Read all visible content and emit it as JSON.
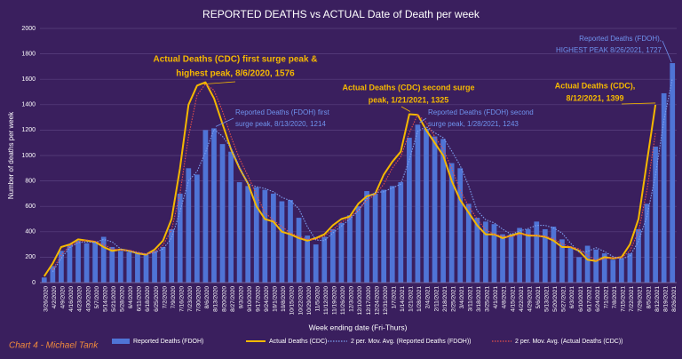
{
  "chart_data": {
    "type": "bar",
    "title": "REPORTED DEATHS vs ACTUAL Date of Death per week",
    "y_label": "Number of deaths per week",
    "x_label": "Week ending date (Fri-Thurs)",
    "credit": "Chart 4 - Michael Tank",
    "ylim": [
      0,
      2000
    ],
    "yticks": [
      0,
      200,
      400,
      600,
      800,
      1000,
      1200,
      1400,
      1600,
      1800,
      2000
    ],
    "grid": true,
    "categories": [
      "3/26/2020",
      "4/2/2020",
      "4/9/2020",
      "4/16/2020",
      "4/23/2020",
      "4/30/2020",
      "5/7/2020",
      "5/14/2020",
      "5/21/2020",
      "5/28/2020",
      "6/4/2020",
      "6/11/2020",
      "6/18/2020",
      "6/25/2020",
      "7/2/2020",
      "7/9/2020",
      "7/16/2020",
      "7/23/2020",
      "7/30/2020",
      "8/6/2020",
      "8/13/2020",
      "8/20/2020",
      "8/27/2020",
      "9/3/2020",
      "9/10/2020",
      "9/17/2020",
      "9/24/2020",
      "10/1/2020",
      "10/8/2020",
      "10/15/2020",
      "10/22/2020",
      "10/29/2020",
      "11/5/2020",
      "11/12/2020",
      "11/19/2020",
      "11/26/2020",
      "12/3/2020",
      "12/10/2020",
      "12/17/2020",
      "12/24/2020",
      "12/31/2020",
      "1/7/2021",
      "1/14/2021",
      "1/21/2021",
      "1/28/2021",
      "2/4/2021",
      "2/11/2021",
      "2/18/2021",
      "2/25/2021",
      "3/4/2021",
      "3/11/2021",
      "3/18/2021",
      "3/25/2021",
      "4/1/2021",
      "4/8/2021",
      "4/15/2021",
      "4/22/2021",
      "4/29/2021",
      "5/6/2021",
      "5/13/2021",
      "5/20/2021",
      "5/27/2021",
      "6/3/2021",
      "6/10/2021",
      "6/17/2021",
      "6/24/2021",
      "7/1/2021",
      "7/8/2021",
      "7/15/2021",
      "7/22/2021",
      "7/29/2021",
      "8/5/2021",
      "8/12/2021",
      "8/19/2021",
      "8/26/2021"
    ],
    "series": [
      {
        "name": "Reported Deaths (FDOH)",
        "kind": "bar",
        "color": "#4f74d6",
        "values": [
          40,
          130,
          250,
          300,
          330,
          310,
          320,
          360,
          280,
          250,
          240,
          230,
          220,
          250,
          280,
          420,
          700,
          900,
          850,
          1200,
          1214,
          1090,
          1030,
          790,
          760,
          750,
          730,
          700,
          640,
          650,
          510,
          370,
          300,
          360,
          420,
          470,
          530,
          600,
          720,
          700,
          730,
          760,
          790,
          1140,
          1243,
          1210,
          1150,
          1130,
          940,
          900,
          620,
          510,
          480,
          460,
          380,
          380,
          430,
          420,
          480,
          420,
          440,
          340,
          280,
          200,
          290,
          260,
          230,
          180,
          190,
          230,
          420,
          620,
          1070,
          1490,
          1727
        ]
      },
      {
        "name": "Actual Deaths (CDC)",
        "kind": "line",
        "color": "#f5b800",
        "values": [
          50,
          150,
          280,
          300,
          340,
          330,
          320,
          280,
          250,
          260,
          250,
          230,
          220,
          260,
          330,
          500,
          900,
          1400,
          1550,
          1576,
          1450,
          1250,
          1050,
          900,
          780,
          600,
          500,
          480,
          400,
          380,
          350,
          330,
          350,
          380,
          450,
          500,
          520,
          620,
          680,
          700,
          850,
          950,
          1030,
          1325,
          1320,
          1200,
          1100,
          1000,
          800,
          650,
          550,
          450,
          380,
          380,
          350,
          370,
          390,
          370,
          370,
          360,
          330,
          280,
          280,
          250,
          180,
          170,
          200,
          190,
          200,
          300,
          500,
          950,
          1399,
          null,
          null
        ]
      },
      {
        "name": "2 per. Mov. Avg. (Reported Deaths (FDOH))",
        "kind": "dotted",
        "color": "#7ea0f0",
        "values": [
          null,
          85,
          190,
          275,
          315,
          320,
          315,
          340,
          320,
          265,
          245,
          235,
          225,
          235,
          265,
          350,
          560,
          800,
          875,
          1025,
          1207,
          1152,
          1060,
          910,
          775,
          755,
          740,
          715,
          670,
          645,
          580,
          440,
          335,
          330,
          390,
          445,
          500,
          565,
          660,
          710,
          715,
          745,
          775,
          965,
          1191.5,
          1226.5,
          1180,
          1140,
          1035,
          920,
          760,
          565,
          495,
          470,
          420,
          380,
          405,
          425,
          450,
          450,
          430,
          390,
          310,
          240,
          245,
          275,
          245,
          205,
          185,
          210,
          325,
          520,
          845,
          1280,
          1608.5
        ]
      },
      {
        "name": "2 per. Mov. Avg. (Actual Deaths (CDC))",
        "kind": "dotted",
        "color": "#e8504a",
        "values": [
          null,
          100,
          215,
          290,
          320,
          335,
          325,
          300,
          265,
          255,
          255,
          240,
          225,
          240,
          295,
          415,
          700,
          1150,
          1475,
          1563,
          1513,
          1350,
          1150,
          975,
          840,
          690,
          550,
          490,
          440,
          390,
          365,
          340,
          340,
          365,
          415,
          475,
          510,
          570,
          650,
          690,
          775,
          900,
          990,
          1177.5,
          1322.5,
          1260,
          1150,
          1050,
          900,
          725,
          600,
          500,
          415,
          380,
          365,
          360,
          380,
          380,
          370,
          365,
          345,
          305,
          280,
          265,
          215,
          175,
          185,
          195,
          195,
          250,
          400,
          725,
          1174.5,
          null,
          null
        ]
      }
    ],
    "annotations": [
      {
        "lines": [
          "Actual Deaths (CDC) first surge peak &",
          "highest peak, 8/6/2020, 1576"
        ],
        "color": "#f5b800"
      },
      {
        "lines": [
          "Reported Deaths (FDOH) first",
          "surge peak, 8/13/2020, 1214"
        ],
        "color": "#6f93ee"
      },
      {
        "lines": [
          "Actual Deaths (CDC) second surge",
          "peak, 1/21/2021, 1325"
        ],
        "color": "#f5b800"
      },
      {
        "lines": [
          "Reported Deaths (FDOH) second",
          "surge peak, 1/28/2021, 1243"
        ],
        "color": "#6f93ee"
      },
      {
        "lines": [
          "Reported Deaths (FDOH),",
          "HIGHEST PEAK 8/26/2021, 1727"
        ],
        "color": "#6f93ee"
      },
      {
        "lines": [
          "Actual Deaths (CDC),",
          "8/12/2021, 1399"
        ],
        "color": "#f5b800"
      }
    ]
  }
}
